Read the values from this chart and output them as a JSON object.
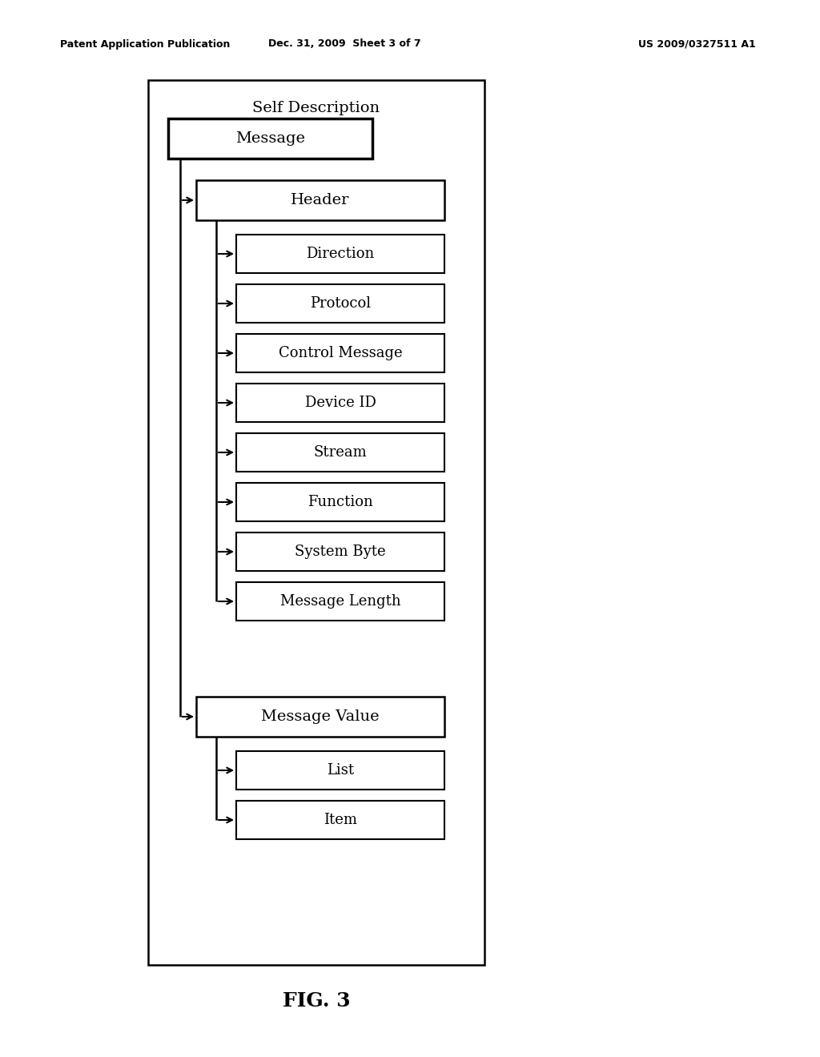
{
  "title_text_left": "Patent Application Publication",
  "title_text_mid": "Dec. 31, 2009  Sheet 3 of 7",
  "title_text_right": "US 2009/0327511 A1",
  "fig_label": "FIG. 3",
  "outer_box_label": "Self Description",
  "message_label": "Message",
  "header_label": "Header",
  "header_children": [
    "Direction",
    "Protocol",
    "Control Message",
    "Device ID",
    "Stream",
    "Function",
    "System Byte",
    "Message Length"
  ],
  "value_label": "Message Value",
  "value_children": [
    "List",
    "Item"
  ],
  "bg_color": "#ffffff",
  "box_edge_color": "#000000",
  "text_color": "#000000"
}
